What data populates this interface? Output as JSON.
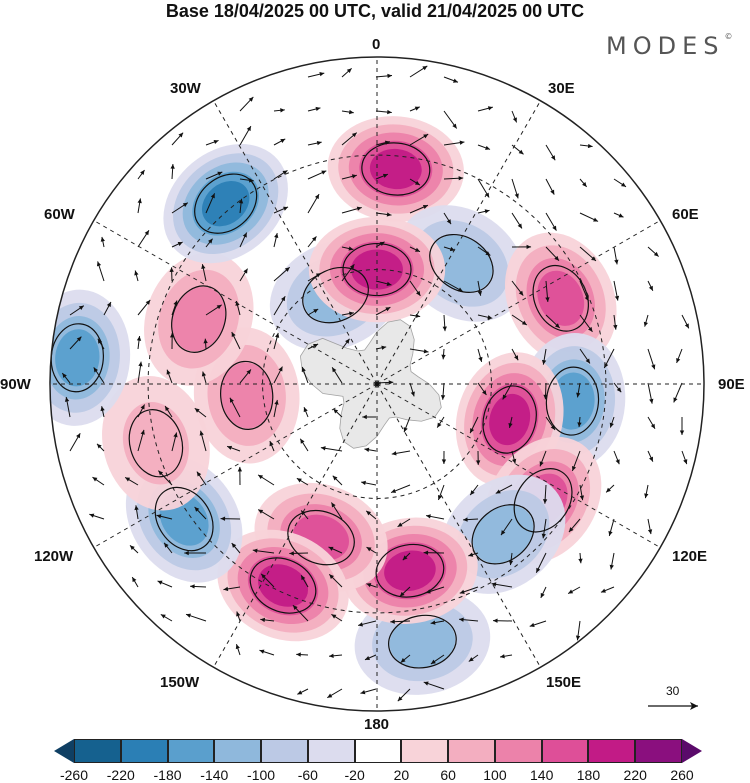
{
  "title": "Base 18/04/2025 00 UTC, valid 21/04/2025 00 UTC",
  "brand": "MODES",
  "brand_mark": "©",
  "longitude_labels": {
    "lon_0": "0",
    "lon_30e": "30E",
    "lon_60e": "60E",
    "lon_90e": "90E",
    "lon_120e": "120E",
    "lon_150e": "150E",
    "lon_180": "180",
    "lon_150w": "150W",
    "lon_120w": "120W",
    "lon_90w": "90W",
    "lon_60w": "60W",
    "lon_30w": "30W"
  },
  "reference_vector": {
    "label": "30"
  },
  "colorbar": {
    "ticks": [
      "-260",
      "-220",
      "-180",
      "-140",
      "-100",
      "-60",
      "-20",
      "20",
      "60",
      "100",
      "140",
      "180",
      "220",
      "260"
    ],
    "colors": [
      "#0f3f63",
      "#15618f",
      "#2b7fb5",
      "#5a9fcd",
      "#8fb8dc",
      "#bcc9e5",
      "#dcdcee",
      "#ffffff",
      "#f8d3d9",
      "#f3aec0",
      "#ec82aa",
      "#de4f98",
      "#c21b86",
      "#8a0f7e",
      "#5a0a6a"
    ]
  },
  "map": {
    "projection": "south-polar-stereographic",
    "continent_color": "#e6e6e6",
    "anomaly_blobs": [
      {
        "lon": 5,
        "lat_r": 0.66,
        "value": 200
      },
      {
        "lon": 35,
        "lat_r": 0.45,
        "value": -110
      },
      {
        "lon": 65,
        "lat_r": 0.62,
        "value": 140
      },
      {
        "lon": 95,
        "lat_r": 0.6,
        "value": -170
      },
      {
        "lon": 105,
        "lat_r": 0.42,
        "value": 180
      },
      {
        "lon": 125,
        "lat_r": 0.62,
        "value": 160
      },
      {
        "lon": 140,
        "lat_r": 0.6,
        "value": -120
      },
      {
        "lon": 170,
        "lat_r": 0.8,
        "value": -110
      },
      {
        "lon": 170,
        "lat_r": 0.58,
        "value": 190
      },
      {
        "lon": 200,
        "lat_r": 0.5,
        "value": 170
      },
      {
        "lon": 205,
        "lat_r": 0.68,
        "value": 190
      },
      {
        "lon": 235,
        "lat_r": 0.72,
        "value": -170
      },
      {
        "lon": 265,
        "lat_r": 0.4,
        "value": 120
      },
      {
        "lon": 255,
        "lat_r": 0.7,
        "value": 60
      },
      {
        "lon": 275,
        "lat_r": 0.92,
        "value": -160
      },
      {
        "lon": 290,
        "lat_r": 0.58,
        "value": 130
      },
      {
        "lon": 320,
        "lat_r": 0.72,
        "value": -210
      },
      {
        "lon": 335,
        "lat_r": 0.3,
        "value": -130
      },
      {
        "lon": 0,
        "lat_r": 0.35,
        "value": 200
      }
    ]
  }
}
